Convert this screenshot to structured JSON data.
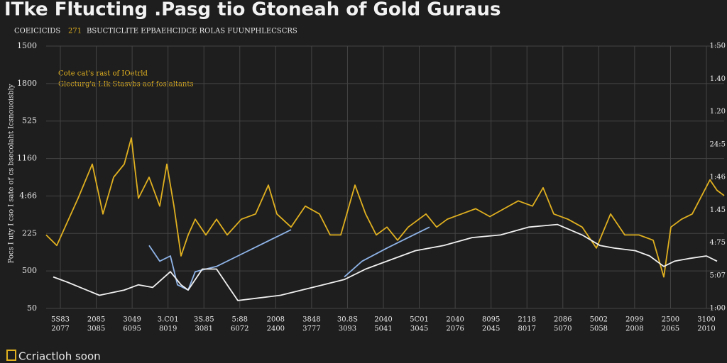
{
  "chart_data": {
    "type": "line",
    "title": "ITke Fltucting .Pasg tio Gtoneah of Gold Guraus",
    "subtitle": "COEICICIDS",
    "subtitle_highlight": "271",
    "subtitle_rest": "BSUCTICLITE EPBAEHCIDCE ROLAS FUUNPHLECSCRS",
    "annotation_line1": "Cote cat's rast of IOetrld",
    "annotation_line2": "Glecturg'a I.Ik Stasvbs aof foslaltants",
    "ylabel": "Pocs I uty I cso I sate of cs bsecolaht Icsnouoisbly",
    "ytick_labels": [
      "1500",
      "1800",
      "525",
      "1160",
      "4:66",
      "225",
      "500",
      "50"
    ],
    "y2tick_labels": [
      "1:50",
      "1.40",
      "1.20",
      "24:5",
      "1:46",
      "1.45",
      "4:75",
      "5:07",
      "1:00"
    ],
    "categories": [
      "5S83",
      "2085",
      "3049",
      "3.C01",
      "3S.85",
      "5:88",
      "2008",
      "3848",
      "30.8S",
      "2040",
      "5C01",
      "2040",
      "8095",
      "2118",
      "2086",
      "5002",
      "2099",
      "2500",
      "3100"
    ],
    "categories_row2": [
      "2077",
      "3085",
      "6095",
      "8019",
      "3081",
      "6072",
      "2400",
      "3777",
      "3093",
      "5041",
      "3045",
      "2076",
      "2045",
      "8017",
      "5070",
      "5058",
      "2008",
      "2065",
      "2010"
    ],
    "footer": "Ccriactloh soon",
    "xlim": [
      0,
      955
    ],
    "ylim": [
      0,
      100
    ],
    "grid": true,
    "series": [
      {
        "name": "gold",
        "color": "#e0b020",
        "x": [
          0,
          15,
          35,
          45,
          65,
          80,
          95,
          110,
          120,
          130,
          145,
          160,
          170,
          180,
          190,
          200,
          210,
          225,
          240,
          255,
          275,
          295,
          313,
          325,
          345,
          365,
          385,
          400,
          415,
          435,
          450,
          465,
          480,
          495,
          510,
          535,
          550,
          565,
          585,
          605,
          625,
          645,
          665,
          685,
          700,
          715,
          735,
          755,
          775,
          795,
          815,
          835,
          855,
          870,
          880,
          895,
          910,
          935,
          945,
          955
        ],
        "values": [
          28,
          24,
          36,
          42,
          55,
          36,
          50,
          55,
          65,
          42,
          50,
          39,
          55,
          39,
          20,
          28,
          34,
          28,
          34,
          28,
          34,
          36,
          47,
          36,
          31,
          39,
          36,
          28,
          28,
          47,
          36,
          28,
          31,
          26,
          31,
          36,
          31,
          34,
          36,
          38,
          35,
          38,
          41,
          39,
          46,
          36,
          34,
          31,
          23,
          36,
          28,
          28,
          26,
          12,
          31,
          34,
          36,
          49,
          45,
          43
        ]
      },
      {
        "name": "blue",
        "color": "#8fb4e8",
        "x": [
          145,
          160,
          175,
          185,
          200,
          210,
          240,
          270,
          300,
          330,
          345,
          380,
          420,
          445,
          480,
          510,
          540
        ],
        "values": [
          24,
          18,
          20,
          9,
          7,
          14,
          16,
          20,
          24,
          28,
          30,
          null,
          12,
          18,
          23,
          27,
          31
        ]
      },
      {
        "name": "white",
        "color": "#f0f0f0",
        "x": [
          10,
          30,
          75,
          110,
          130,
          150,
          175,
          190,
          200,
          220,
          240,
          255,
          270,
          300,
          330,
          360,
          390,
          420,
          450,
          480,
          520,
          560,
          600,
          640,
          680,
          720,
          755,
          780,
          800,
          830,
          850,
          870,
          885,
          905,
          930,
          945
        ],
        "values": [
          12,
          10,
          5,
          7,
          9,
          8,
          14,
          9,
          7,
          15,
          15,
          9,
          3,
          4,
          5,
          7,
          9,
          11,
          15,
          18,
          22,
          24,
          27,
          28,
          31,
          32,
          28,
          24,
          23,
          22,
          20,
          16,
          18,
          19,
          20,
          18
        ]
      }
    ]
  }
}
